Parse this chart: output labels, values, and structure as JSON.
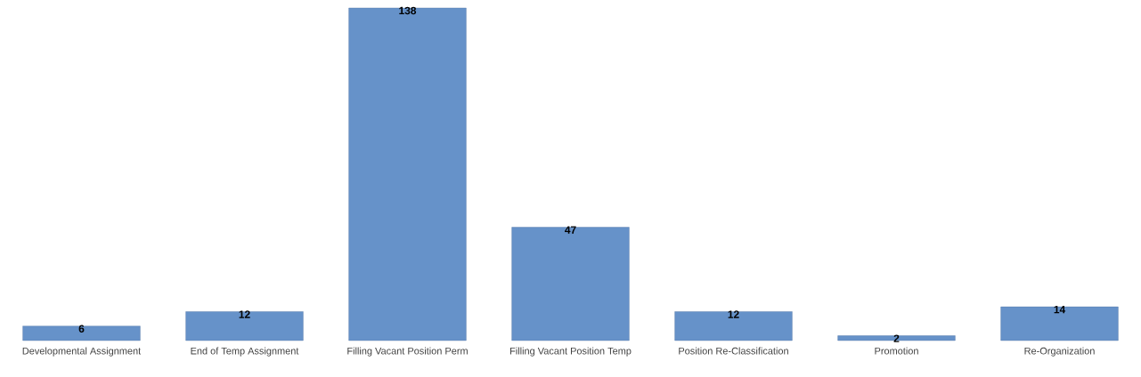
{
  "chart_data": {
    "type": "bar",
    "categories": [
      "Developmental Assignment",
      "End of Temp Assignment",
      "Filling Vacant Position Perm",
      "Filling Vacant Position Temp",
      "Position Re-Classification",
      "Promotion",
      "Re-Organization"
    ],
    "values": [
      6,
      12,
      138,
      47,
      12,
      2,
      14
    ],
    "color": "#6692c9",
    "data_labels": true
  }
}
